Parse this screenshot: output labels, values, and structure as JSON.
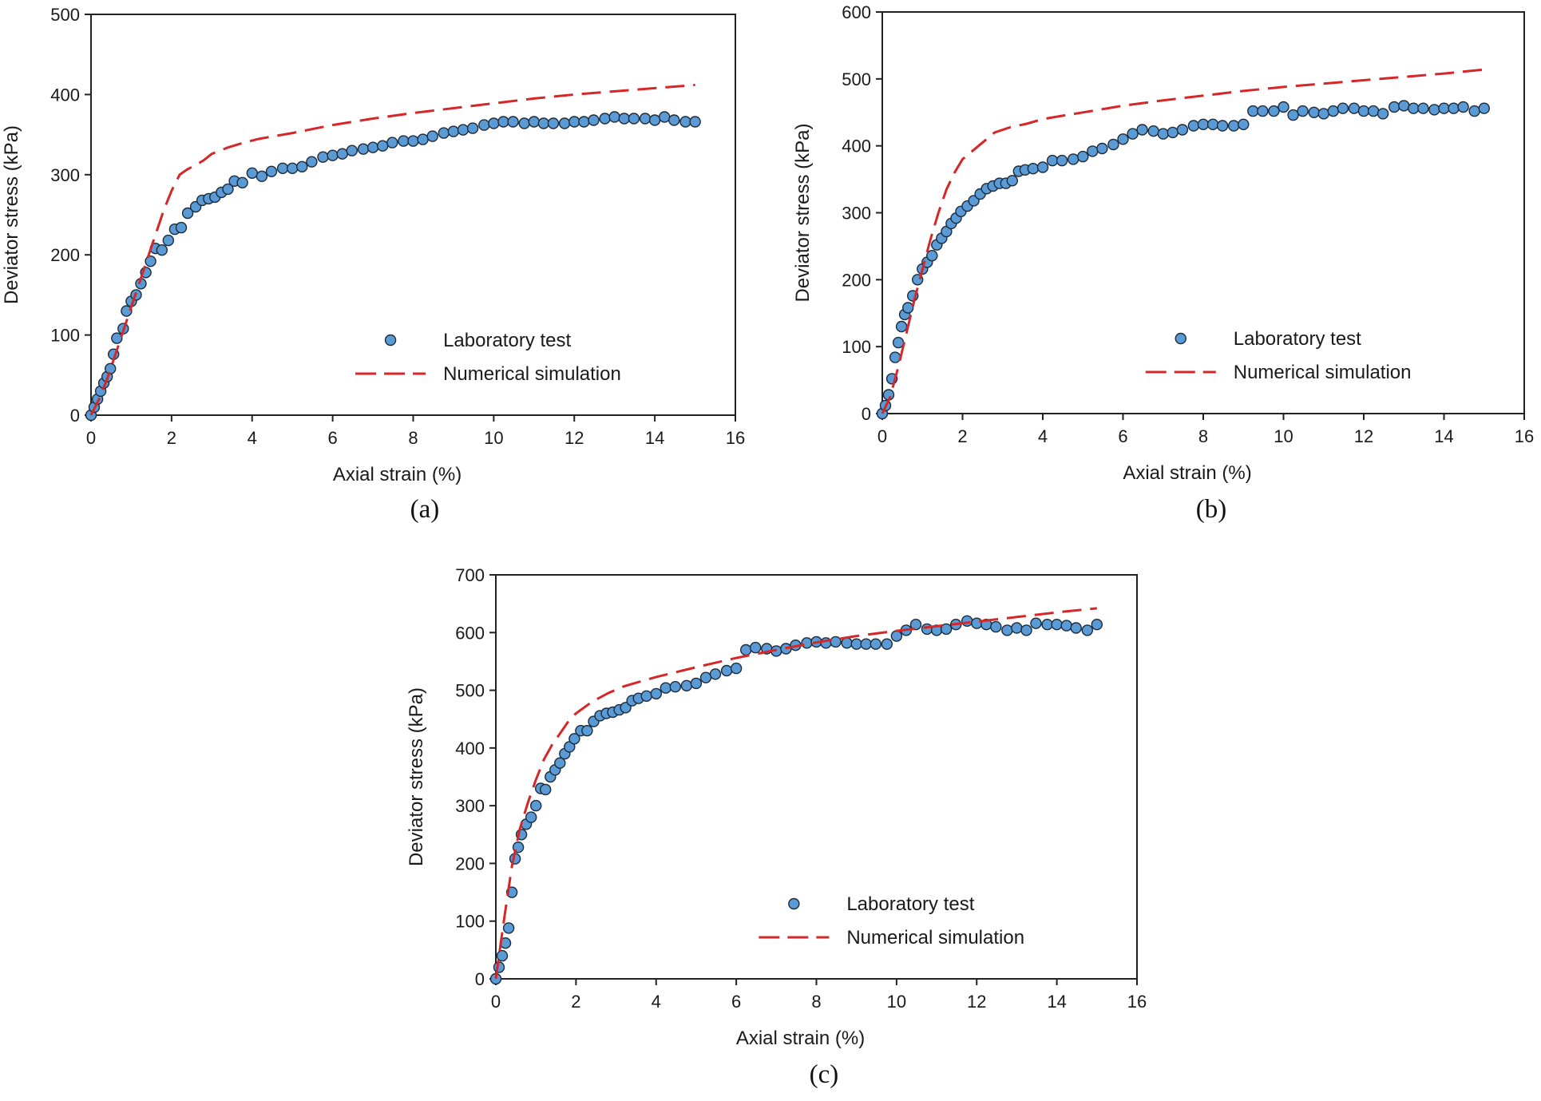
{
  "chart_data": [
    {
      "type": "scatter",
      "caption": "(a)",
      "xlabel": "Axial strain (%)",
      "ylabel": "Deviator stress (kPa)",
      "xlim": [
        0,
        16
      ],
      "ylim": [
        0,
        500
      ],
      "xticks": [
        0,
        2,
        4,
        6,
        8,
        10,
        12,
        14,
        16
      ],
      "yticks": [
        0,
        100,
        200,
        300,
        400,
        500
      ],
      "legend_position": "bottom-right",
      "series": [
        {
          "name": "Laboratory test",
          "kind": "markers",
          "color": "#5b9bd5",
          "x": [
            0,
            0.08,
            0.16,
            0.24,
            0.32,
            0.4,
            0.48,
            0.56,
            0.64,
            0.8,
            0.88,
            1.0,
            1.12,
            1.24,
            1.36,
            1.48,
            1.6,
            1.76,
            1.92,
            2.08,
            2.24,
            2.4,
            2.6,
            2.76,
            2.92,
            3.08,
            3.24,
            3.4,
            3.56,
            3.76,
            4.0,
            4.24,
            4.48,
            4.76,
            5.0,
            5.24,
            5.48,
            5.76,
            6.0,
            6.24,
            6.48,
            6.76,
            7.0,
            7.24,
            7.48,
            7.76,
            8.0,
            8.24,
            8.48,
            8.76,
            9.0,
            9.24,
            9.48,
            9.76,
            10.0,
            10.24,
            10.48,
            10.76,
            11.0,
            11.24,
            11.48,
            11.76,
            12.0,
            12.24,
            12.48,
            12.76,
            13.0,
            13.24,
            13.48,
            13.76,
            14.0,
            14.24,
            14.48,
            14.76,
            15.0
          ],
          "y": [
            0,
            10,
            20,
            30,
            40,
            48,
            58,
            76,
            96,
            108,
            130,
            142,
            150,
            164,
            178,
            192,
            208,
            206,
            218,
            232,
            234,
            252,
            260,
            268,
            270,
            272,
            278,
            282,
            292,
            290,
            302,
            298,
            304,
            308,
            308,
            310,
            316,
            322,
            324,
            326,
            330,
            332,
            334,
            336,
            340,
            342,
            342,
            344,
            348,
            352,
            354,
            356,
            358,
            362,
            364,
            366,
            366,
            364,
            366,
            364,
            364,
            364,
            366,
            366,
            368,
            370,
            372,
            370,
            370,
            370,
            368,
            372,
            368,
            366,
            366
          ]
        },
        {
          "name": "Numerical simulation",
          "kind": "dashed-line",
          "color": "#d62728",
          "x": [
            0,
            0.2,
            0.4,
            0.6,
            0.8,
            1.0,
            1.2,
            1.4,
            1.6,
            1.8,
            2.0,
            2.2,
            2.4,
            2.6,
            2.8,
            3.0,
            3.4,
            3.8,
            4.2,
            5.0,
            6.0,
            7.0,
            8.0,
            9.0,
            10.0,
            11.0,
            12.0,
            13.0,
            14.0,
            15.0
          ],
          "y": [
            0,
            20,
            45,
            75,
            105,
            135,
            165,
            195,
            225,
            255,
            280,
            300,
            307,
            312,
            318,
            326,
            334,
            340,
            345,
            352,
            362,
            370,
            377,
            383,
            389,
            395,
            400,
            404,
            408,
            412
          ]
        }
      ]
    },
    {
      "type": "scatter",
      "caption": "(b)",
      "xlabel": "Axial strain (%)",
      "ylabel": "Deviator stress (kPa)",
      "xlim": [
        0,
        16
      ],
      "ylim": [
        0,
        600
      ],
      "xticks": [
        0,
        2,
        4,
        6,
        8,
        10,
        12,
        14,
        16
      ],
      "yticks": [
        0,
        100,
        200,
        300,
        400,
        500,
        600
      ],
      "legend_position": "bottom-right",
      "series": [
        {
          "name": "Laboratory test",
          "kind": "markers",
          "color": "#5b9bd5",
          "x": [
            0,
            0.08,
            0.16,
            0.24,
            0.32,
            0.4,
            0.48,
            0.56,
            0.64,
            0.76,
            0.88,
            1.0,
            1.12,
            1.24,
            1.36,
            1.48,
            1.6,
            1.72,
            1.84,
            1.96,
            2.12,
            2.28,
            2.44,
            2.6,
            2.76,
            2.92,
            3.08,
            3.24,
            3.4,
            3.56,
            3.76,
            4.0,
            4.24,
            4.48,
            4.76,
            5.0,
            5.24,
            5.48,
            5.76,
            6.0,
            6.24,
            6.48,
            6.76,
            7.0,
            7.24,
            7.48,
            7.76,
            8.0,
            8.24,
            8.48,
            8.76,
            9.0,
            9.24,
            9.48,
            9.76,
            10.0,
            10.24,
            10.48,
            10.76,
            11.0,
            11.24,
            11.48,
            11.76,
            12.0,
            12.24,
            12.48,
            12.76,
            13.0,
            13.24,
            13.48,
            13.76,
            14.0,
            14.24,
            14.48,
            14.76,
            15.0
          ],
          "y": [
            0,
            12,
            28,
            52,
            84,
            106,
            130,
            148,
            158,
            176,
            200,
            216,
            226,
            236,
            252,
            262,
            272,
            284,
            292,
            302,
            310,
            318,
            328,
            336,
            340,
            344,
            344,
            348,
            362,
            364,
            366,
            368,
            378,
            378,
            380,
            384,
            392,
            396,
            402,
            410,
            418,
            424,
            422,
            418,
            420,
            424,
            430,
            432,
            432,
            430,
            430,
            432,
            452,
            452,
            452,
            458,
            446,
            452,
            450,
            448,
            452,
            456,
            456,
            452,
            452,
            448,
            458,
            460,
            456,
            456,
            454,
            456,
            456,
            458,
            452,
            456
          ]
        },
        {
          "name": "Numerical simulation",
          "kind": "dashed-line",
          "color": "#d62728",
          "x": [
            0,
            0.2,
            0.4,
            0.6,
            0.8,
            1.0,
            1.2,
            1.4,
            1.6,
            1.8,
            2.0,
            2.4,
            2.8,
            3.2,
            3.6,
            4.0,
            4.5,
            5.0,
            5.5,
            6.0,
            7.0,
            8.0,
            9.0,
            10.0,
            11.0,
            12.0,
            13.0,
            14.0,
            15.0
          ],
          "y": [
            0,
            25,
            70,
            120,
            170,
            215,
            260,
            300,
            335,
            360,
            380,
            400,
            420,
            428,
            433,
            440,
            445,
            450,
            455,
            460,
            468,
            475,
            482,
            488,
            493,
            498,
            503,
            508,
            514
          ]
        }
      ]
    },
    {
      "type": "scatter",
      "caption": "(c)",
      "xlabel": "Axial strain (%)",
      "ylabel": "Deviator stress (kPa)",
      "xlim": [
        0,
        16
      ],
      "ylim": [
        0,
        700
      ],
      "xticks": [
        0,
        2,
        4,
        6,
        8,
        10,
        12,
        14,
        16
      ],
      "yticks": [
        0,
        100,
        200,
        300,
        400,
        500,
        600,
        700
      ],
      "legend_position": "bottom-right",
      "series": [
        {
          "name": "Laboratory test",
          "kind": "markers",
          "color": "#5b9bd5",
          "x": [
            0,
            0.08,
            0.16,
            0.24,
            0.32,
            0.4,
            0.48,
            0.56,
            0.64,
            0.76,
            0.88,
            1.0,
            1.12,
            1.24,
            1.36,
            1.48,
            1.6,
            1.72,
            1.84,
            1.96,
            2.12,
            2.28,
            2.44,
            2.6,
            2.76,
            2.92,
            3.08,
            3.24,
            3.4,
            3.56,
            3.76,
            4.0,
            4.24,
            4.48,
            4.76,
            5.0,
            5.24,
            5.48,
            5.76,
            6.0,
            6.24,
            6.48,
            6.76,
            7.0,
            7.24,
            7.48,
            7.76,
            8.0,
            8.24,
            8.48,
            8.76,
            9.0,
            9.24,
            9.48,
            9.76,
            10.0,
            10.24,
            10.48,
            10.76,
            11.0,
            11.24,
            11.48,
            11.76,
            12.0,
            12.24,
            12.48,
            12.76,
            13.0,
            13.24,
            13.48,
            13.76,
            14.0,
            14.24,
            14.48,
            14.76,
            15.0
          ],
          "y": [
            0,
            20,
            40,
            62,
            88,
            150,
            208,
            228,
            250,
            268,
            280,
            300,
            330,
            328,
            350,
            362,
            374,
            390,
            402,
            416,
            430,
            430,
            446,
            456,
            460,
            462,
            466,
            470,
            482,
            486,
            490,
            494,
            504,
            506,
            508,
            512,
            522,
            528,
            534,
            538,
            570,
            574,
            572,
            568,
            572,
            578,
            582,
            584,
            582,
            584,
            582,
            580,
            580,
            580,
            580,
            594,
            604,
            614,
            606,
            604,
            606,
            614,
            620,
            616,
            614,
            610,
            604,
            608,
            604,
            616,
            614,
            614,
            612,
            608,
            604,
            614
          ]
        },
        {
          "name": "Numerical simulation",
          "kind": "dashed-line",
          "color": "#d62728",
          "x": [
            0,
            0.2,
            0.4,
            0.6,
            0.8,
            1.0,
            1.2,
            1.4,
            1.6,
            1.8,
            2.0,
            2.4,
            2.8,
            3.2,
            3.6,
            4.0,
            5.0,
            6.0,
            7.0,
            8.0,
            9.0,
            10.0,
            11.0,
            12.0,
            13.0,
            14.0,
            15.0
          ],
          "y": [
            0,
            100,
            195,
            260,
            305,
            345,
            380,
            405,
            425,
            445,
            460,
            480,
            495,
            507,
            515,
            523,
            540,
            556,
            570,
            583,
            594,
            603,
            611,
            619,
            627,
            635,
            642
          ]
        }
      ]
    }
  ]
}
